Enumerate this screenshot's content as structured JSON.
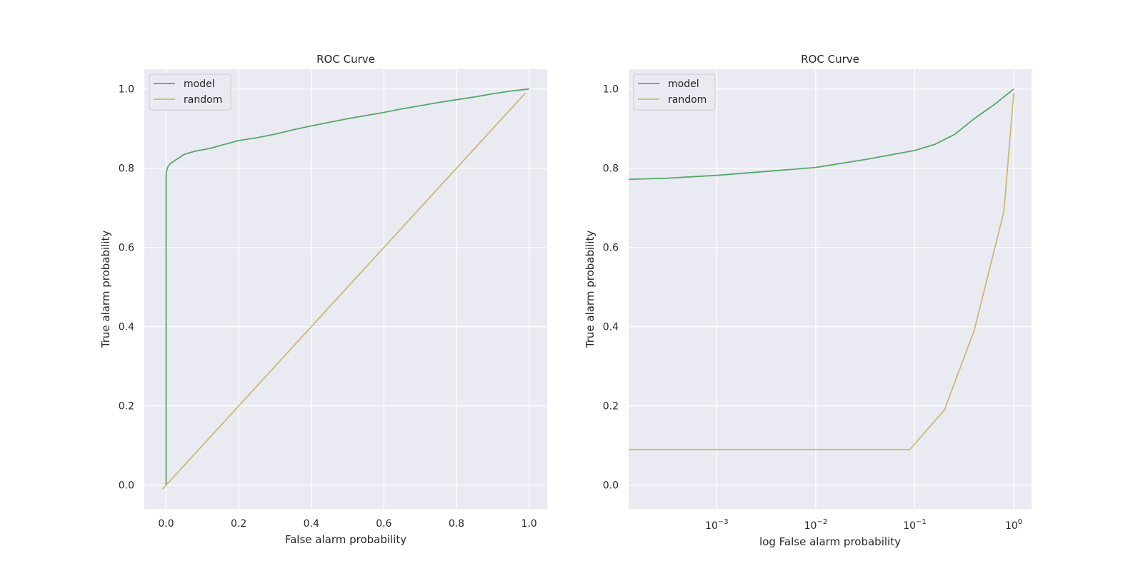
{
  "figure": {
    "background": "#ffffff",
    "panel_color": "#eaeaf2",
    "grid_color": "#ffffff"
  },
  "chart_data": [
    {
      "type": "line",
      "title": "ROC Curve",
      "xlabel": "False alarm probability",
      "ylabel": "True alarm probability",
      "xscale": "linear",
      "xlim": [
        -0.06,
        1.05
      ],
      "ylim": [
        -0.06,
        1.05
      ],
      "xticks": [
        0.0,
        0.2,
        0.4,
        0.6,
        0.8,
        1.0
      ],
      "xtick_labels": [
        "0.0",
        "0.2",
        "0.4",
        "0.6",
        "0.8",
        "1.0"
      ],
      "yticks": [
        0.0,
        0.2,
        0.4,
        0.6,
        0.8,
        1.0
      ],
      "ytick_labels": [
        "0.0",
        "0.2",
        "0.4",
        "0.6",
        "0.8",
        "1.0"
      ],
      "legend_position": "upper-left",
      "series": [
        {
          "name": "model",
          "color": "#55a868",
          "x": [
            0.0,
            0.0,
            0.001,
            0.003,
            0.006,
            0.012,
            0.025,
            0.05,
            0.08,
            0.12,
            0.16,
            0.2,
            0.25,
            0.3,
            0.35,
            0.4,
            0.45,
            0.5,
            0.55,
            0.6,
            0.65,
            0.7,
            0.75,
            0.8,
            0.85,
            0.9,
            0.95,
            1.0
          ],
          "y": [
            0.0,
            0.78,
            0.79,
            0.8,
            0.805,
            0.812,
            0.82,
            0.835,
            0.843,
            0.85,
            0.86,
            0.87,
            0.877,
            0.886,
            0.897,
            0.907,
            0.916,
            0.925,
            0.933,
            0.941,
            0.95,
            0.958,
            0.966,
            0.973,
            0.98,
            0.988,
            0.995,
            1.0
          ]
        },
        {
          "name": "random",
          "color": "#ccb974",
          "x": [
            -0.01,
            0.99
          ],
          "y": [
            -0.01,
            0.99
          ]
        }
      ]
    },
    {
      "type": "line",
      "title": "ROC Curve",
      "xlabel": "log False alarm probability",
      "ylabel": "True alarm probability",
      "xscale": "log",
      "xlim_log10": [
        -3.89,
        0.18
      ],
      "ylim": [
        -0.06,
        1.05
      ],
      "xticks_log10": [
        -3,
        -2,
        -1,
        0
      ],
      "xtick_labels": [
        {
          "base": "10",
          "exp": "−3"
        },
        {
          "base": "10",
          "exp": "−2"
        },
        {
          "base": "10",
          "exp": "−1"
        },
        {
          "base": "10",
          "exp": "0"
        }
      ],
      "yticks": [
        0.0,
        0.2,
        0.4,
        0.6,
        0.8,
        1.0
      ],
      "ytick_labels": [
        "0.0",
        "0.2",
        "0.4",
        "0.6",
        "0.8",
        "1.0"
      ],
      "legend_position": "upper-left",
      "series": [
        {
          "name": "model",
          "color": "#55a868",
          "x_log10": [
            -3.89,
            -3.5,
            -3.0,
            -2.5,
            -2.0,
            -1.5,
            -1.0,
            -0.8,
            -0.6,
            -0.4,
            -0.2,
            0.0
          ],
          "y": [
            0.772,
            0.775,
            0.782,
            0.792,
            0.802,
            0.822,
            0.845,
            0.86,
            0.885,
            0.925,
            0.96,
            1.0
          ]
        },
        {
          "name": "random",
          "color": "#ccb974",
          "x_log10": [
            -3.89,
            -1.05,
            -0.7,
            -0.55,
            -0.4,
            -0.3,
            -0.2,
            -0.1,
            0.0
          ],
          "y": [
            0.09,
            0.09,
            0.19,
            0.29,
            0.39,
            0.49,
            0.59,
            0.69,
            0.99
          ]
        }
      ]
    }
  ]
}
